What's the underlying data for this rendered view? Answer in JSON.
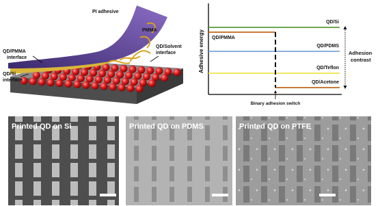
{
  "illustration": {
    "pi_adhesive": "PI adhesive",
    "pmma": "PMMA",
    "qd_pmma_interface": [
      "QD/PMMA",
      "interface"
    ],
    "qd_solvent_interface": [
      "QD/Solvent",
      "interface"
    ],
    "qd_si_interface": [
      "QD/Si",
      "interface"
    ]
  },
  "energy_diagram": {
    "y_axis_label": "Adhesive energy",
    "levels": [
      {
        "label": "QD/Si"
      },
      {
        "label": "QD/PMMA"
      },
      {
        "label": "QD/PDMS"
      },
      {
        "label": "QD/Teflon"
      },
      {
        "label": "QD/Acetone"
      }
    ],
    "adhesion_contrast": [
      "Adhesion",
      "contrast"
    ],
    "switch_label": "Binary adhesion switch"
  },
  "micrographs": [
    {
      "title": "Printed QD on Si"
    },
    {
      "title": "Printed QD on PDMS"
    },
    {
      "title": "Printed QD on PTFE"
    }
  ]
}
